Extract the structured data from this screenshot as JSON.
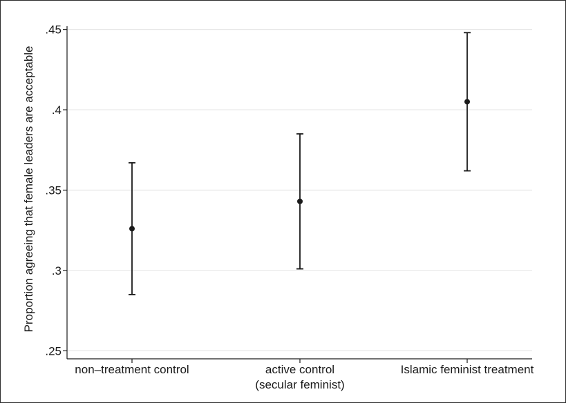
{
  "chart_data": {
    "type": "scatter",
    "title": "",
    "xlabel": "",
    "ylabel": "Proportion agreeing that female leaders are acceptable",
    "categories": [
      [
        "non–treatment control"
      ],
      [
        "active control",
        "(secular feminist)"
      ],
      [
        "Islamic feminist treatment"
      ]
    ],
    "estimates": [
      0.326,
      0.343,
      0.405
    ],
    "ci_lower": [
      0.285,
      0.301,
      0.362
    ],
    "ci_upper": [
      0.367,
      0.385,
      0.448
    ],
    "ylim": [
      0.245,
      0.452
    ],
    "yticks": [
      0.25,
      0.3,
      0.35,
      0.4,
      0.45
    ],
    "ytick_labels": [
      ".25",
      ".3",
      ".35",
      ".4",
      ".45"
    ],
    "grid": true,
    "legend": "none"
  }
}
